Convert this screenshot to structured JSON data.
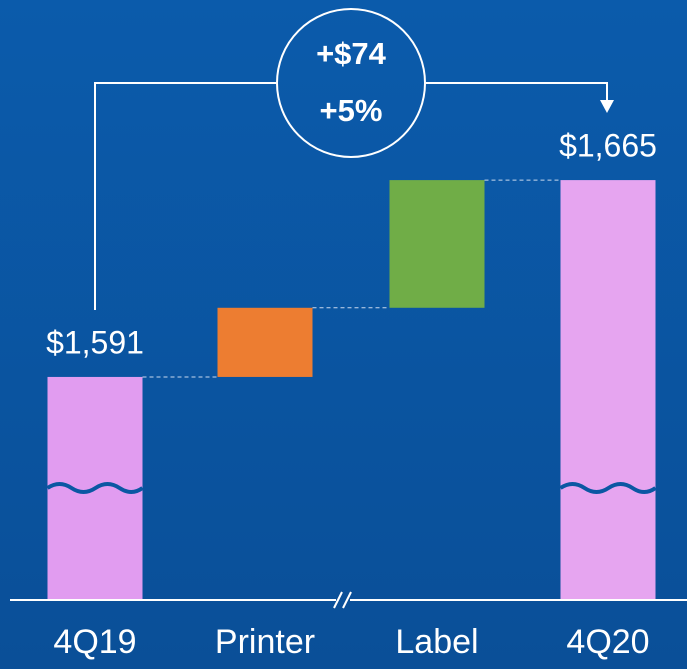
{
  "chart_data": {
    "type": "waterfall",
    "categories": [
      "4Q19",
      "Printer",
      "Label",
      "4Q20"
    ],
    "values": [
      1591,
      26,
      48,
      1665
    ],
    "value_labels": [
      "$1,591",
      null,
      null,
      "$1,665"
    ],
    "colors": [
      "#e19cf0",
      "#ed7d31",
      "#70ad47",
      "#e6a5f0"
    ],
    "annotations": [
      "+$74",
      "+5%"
    ],
    "ylim": [
      1500,
      1700
    ]
  }
}
